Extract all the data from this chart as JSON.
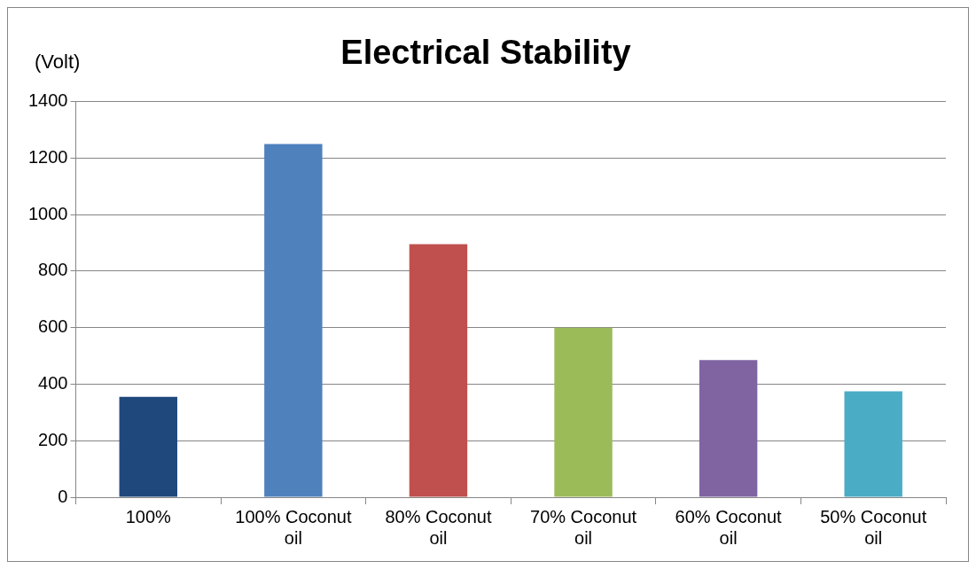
{
  "chart_data": {
    "type": "bar",
    "title": "Electrical Stability",
    "ylabel": "(Volt)",
    "categories": [
      "100%",
      "100% Coconut oil",
      "80% Coconut oil",
      "70% Coconut oil",
      "60% Coconut oil",
      "50% Coconut oil"
    ],
    "values": [
      355,
      1250,
      895,
      600,
      485,
      375
    ],
    "colors": [
      "#1f497d",
      "#4f81bd",
      "#c0504d",
      "#9bbb59",
      "#8064a2",
      "#4bacc6"
    ],
    "ylim": [
      0,
      1400
    ],
    "yticks": [
      0,
      200,
      400,
      600,
      800,
      1000,
      1200,
      1400
    ],
    "grid": "y",
    "legend": false
  }
}
